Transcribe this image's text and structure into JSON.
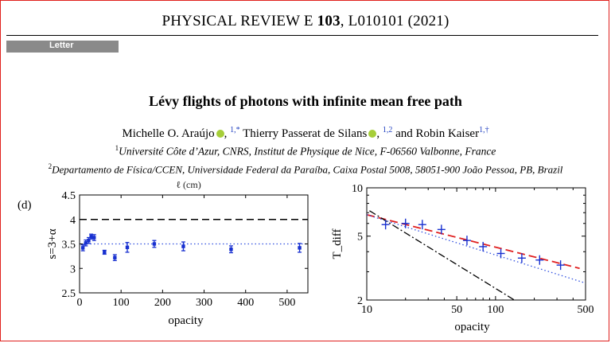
{
  "header": {
    "journal_name": "PHYSICAL REVIEW E",
    "volume": "103",
    "article": ", L010101 (2021)"
  },
  "section_label": "Letter",
  "title": "Lévy flights of photons with infinite mean free path",
  "authors": [
    {
      "name": "Michelle O. Araújo",
      "sup": "1,*",
      "orcid": true
    },
    {
      "name": "Thierry Passerat de Silans",
      "sup": "1,2",
      "orcid": true
    },
    {
      "name": "Robin Kaiser",
      "sup": "1,†",
      "orcid": false
    }
  ],
  "author_sep_1": ", ",
  "author_sep_2": " and ",
  "affiliations": [
    {
      "sup": "1",
      "text": "Université Côte d’Azur, CNRS, Institut de Physique de Nice, F-06560 Valbonne, France"
    },
    {
      "sup": "2",
      "text": "Departamento de Física/CCEN, Universidade Federal da Paraíba, Caixa Postal 5008, 58051-900 João Pessoa, PB, Brazil"
    }
  ],
  "chart_data": [
    {
      "type": "scatter",
      "panel_label": "(d)",
      "top_partial_label": "ℓ (cm)",
      "xlabel": "opacity",
      "ylabel": "s=3+α",
      "xlim": [
        0,
        550
      ],
      "ylim": [
        2.5,
        4.5
      ],
      "xticks": [
        0,
        100,
        200,
        300,
        400,
        500
      ],
      "yticks": [
        2.5,
        3,
        3.5,
        4,
        4.5
      ],
      "reference_lines": [
        {
          "y": 4.0,
          "style": "dashed",
          "color": "#000000"
        },
        {
          "y": 3.5,
          "style": "dotted",
          "color": "#3050e0"
        }
      ],
      "series": [
        {
          "color": "#1830d0",
          "x": [
            8,
            15,
            22,
            28,
            35,
            60,
            85,
            115,
            180,
            250,
            365,
            530
          ],
          "y": [
            3.42,
            3.52,
            3.57,
            3.65,
            3.63,
            3.33,
            3.22,
            3.43,
            3.5,
            3.45,
            3.39,
            3.42
          ],
          "err": [
            0.06,
            0.06,
            0.06,
            0.05,
            0.06,
            0.04,
            0.06,
            0.1,
            0.07,
            0.09,
            0.07,
            0.09
          ]
        }
      ]
    },
    {
      "type": "line",
      "xlabel": "opacity",
      "ylabel": "T_diff",
      "xscale": "log",
      "yscale": "log",
      "xlim": [
        10,
        500
      ],
      "ylim": [
        2,
        10
      ],
      "xtick_labels": [
        "10",
        "50",
        "100",
        "500"
      ],
      "ytick_labels": [
        "2",
        "5",
        "10"
      ],
      "markers": {
        "color": "#1830d0",
        "x": [
          14,
          20,
          27,
          38,
          60,
          80,
          110,
          160,
          220,
          320
        ],
        "y": [
          5.9,
          6.0,
          5.9,
          5.5,
          4.7,
          4.3,
          3.9,
          3.65,
          3.55,
          3.3
        ]
      },
      "lines": [
        {
          "style": "dashed",
          "color": "#e02020",
          "x": [
            10,
            450
          ],
          "y": [
            6.8,
            3.15
          ]
        },
        {
          "style": "dotted",
          "color": "#3050e0",
          "x": [
            10,
            500
          ],
          "y": [
            6.8,
            2.55
          ]
        },
        {
          "style": "dashdot",
          "color": "#000000",
          "x": [
            10.5,
            140
          ],
          "y": [
            7.2,
            2.0
          ]
        }
      ]
    }
  ]
}
